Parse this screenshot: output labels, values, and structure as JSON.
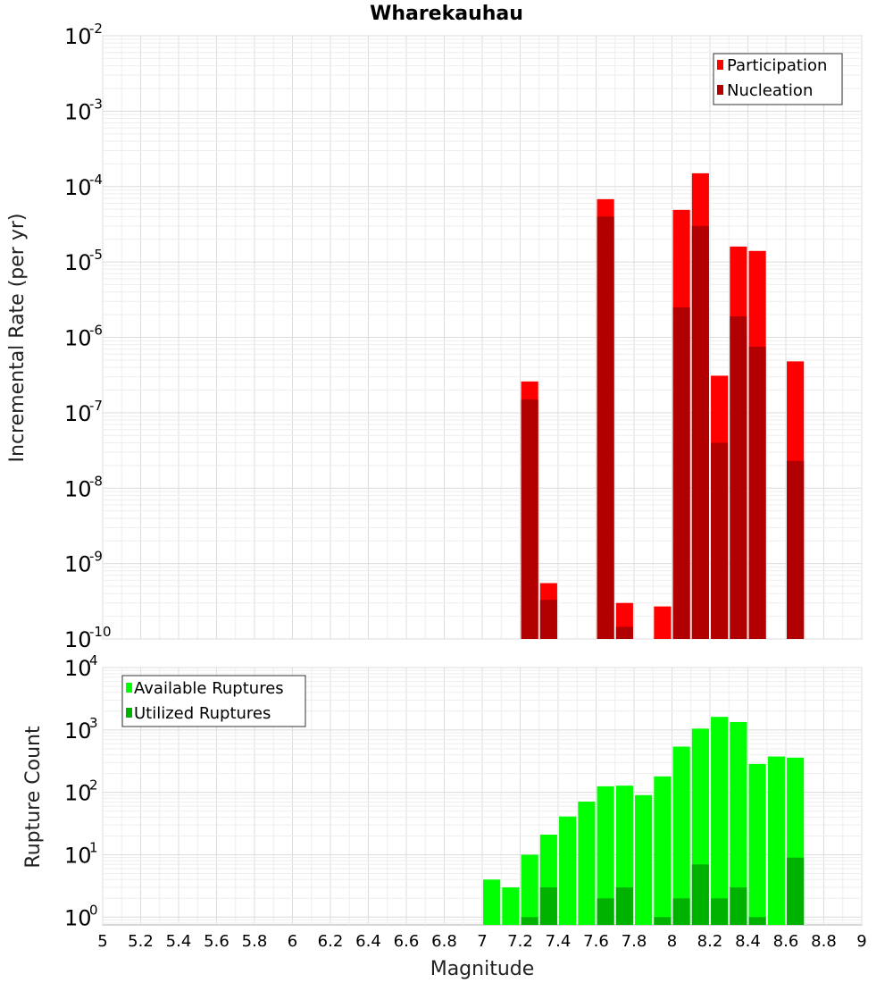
{
  "chart_data": [
    {
      "type": "bar",
      "title": "Wharekauhau",
      "xlabel": "",
      "ylabel": "Incremental Rate (per yr)",
      "xlim": [
        5,
        9
      ],
      "ylim": [
        1e-10,
        0.01
      ],
      "yscale": "log",
      "grid": true,
      "legend_placement": "top-right",
      "bar_width": 0.09,
      "series": [
        {
          "name": "Participation",
          "color": "#ff0000",
          "points": [
            {
              "x": 7.25,
              "y": 2.6e-07
            },
            {
              "x": 7.35,
              "y": 5.5e-10
            },
            {
              "x": 7.65,
              "y": 6.8e-05
            },
            {
              "x": 7.75,
              "y": 3e-10
            },
            {
              "x": 7.95,
              "y": 2.7e-10
            },
            {
              "x": 8.05,
              "y": 4.9e-05
            },
            {
              "x": 8.15,
              "y": 0.00015
            },
            {
              "x": 8.25,
              "y": 3.1e-07
            },
            {
              "x": 8.35,
              "y": 1.6e-05
            },
            {
              "x": 8.45,
              "y": 1.4e-05
            },
            {
              "x": 8.65,
              "y": 4.8e-07
            }
          ]
        },
        {
          "name": "Nucleation",
          "color": "#b20000",
          "points": [
            {
              "x": 7.25,
              "y": 1.5e-07
            },
            {
              "x": 7.35,
              "y": 3.3e-10
            },
            {
              "x": 7.65,
              "y": 4e-05
            },
            {
              "x": 7.75,
              "y": 1.45e-10
            },
            {
              "x": 8.05,
              "y": 2.5e-06
            },
            {
              "x": 8.15,
              "y": 3e-05
            },
            {
              "x": 8.25,
              "y": 4e-08
            },
            {
              "x": 8.35,
              "y": 1.9e-06
            },
            {
              "x": 8.45,
              "y": 7.5e-07
            },
            {
              "x": 8.65,
              "y": 2.3e-08
            }
          ]
        }
      ]
    },
    {
      "type": "bar",
      "title": "",
      "xlabel": "Magnitude",
      "ylabel": "Rupture Count",
      "xlim": [
        5,
        9
      ],
      "ylim": [
        0.75,
        10000
      ],
      "yscale": "log",
      "grid": true,
      "legend_placement": "top-left",
      "bar_width": 0.09,
      "x_ticks": [
        "5",
        "5.2",
        "5.4",
        "5.6",
        "5.8",
        "6",
        "6.2",
        "6.4",
        "6.6",
        "6.8",
        "7",
        "7.2",
        "7.4",
        "7.6",
        "7.8",
        "8",
        "8.2",
        "8.4",
        "8.6",
        "8.8",
        "9"
      ],
      "series": [
        {
          "name": "Available Ruptures",
          "color": "#00ff00",
          "points": [
            {
              "x": 7.05,
              "y": 4
            },
            {
              "x": 7.15,
              "y": 3
            },
            {
              "x": 7.25,
              "y": 10
            },
            {
              "x": 7.35,
              "y": 21
            },
            {
              "x": 7.45,
              "y": 41
            },
            {
              "x": 7.55,
              "y": 71
            },
            {
              "x": 7.65,
              "y": 125
            },
            {
              "x": 7.75,
              "y": 128
            },
            {
              "x": 7.85,
              "y": 90
            },
            {
              "x": 7.95,
              "y": 180
            },
            {
              "x": 8.05,
              "y": 540
            },
            {
              "x": 8.15,
              "y": 1050
            },
            {
              "x": 8.25,
              "y": 1620
            },
            {
              "x": 8.35,
              "y": 1340
            },
            {
              "x": 8.45,
              "y": 285
            },
            {
              "x": 8.55,
              "y": 375
            },
            {
              "x": 8.65,
              "y": 360
            }
          ]
        },
        {
          "name": "Utilized Ruptures",
          "color": "#00b200",
          "points": [
            {
              "x": 7.25,
              "y": 1
            },
            {
              "x": 7.35,
              "y": 3
            },
            {
              "x": 7.65,
              "y": 2
            },
            {
              "x": 7.75,
              "y": 3
            },
            {
              "x": 7.95,
              "y": 1
            },
            {
              "x": 8.05,
              "y": 2
            },
            {
              "x": 8.15,
              "y": 7
            },
            {
              "x": 8.25,
              "y": 2
            },
            {
              "x": 8.35,
              "y": 3
            },
            {
              "x": 8.45,
              "y": 1
            },
            {
              "x": 8.65,
              "y": 9
            }
          ]
        }
      ]
    }
  ]
}
